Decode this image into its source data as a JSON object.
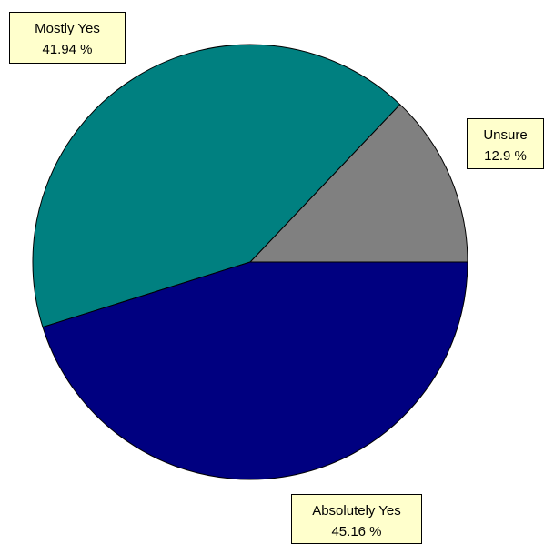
{
  "chart_data": {
    "type": "pie",
    "title": "",
    "start_angle_deg": 0,
    "direction": "counterclockwise",
    "slices": [
      {
        "label": "Unsure",
        "value": 12.9,
        "value_text": "12.9 %",
        "color": "#808080"
      },
      {
        "label": "Mostly Yes",
        "value": 41.94,
        "value_text": "41.94 %",
        "color": "#008080"
      },
      {
        "label": "Absolutely Yes",
        "value": 45.16,
        "value_text": "45.16 %",
        "color": "#000080"
      }
    ],
    "label_style": {
      "background": "#ffffcc",
      "border": "#000000"
    }
  }
}
